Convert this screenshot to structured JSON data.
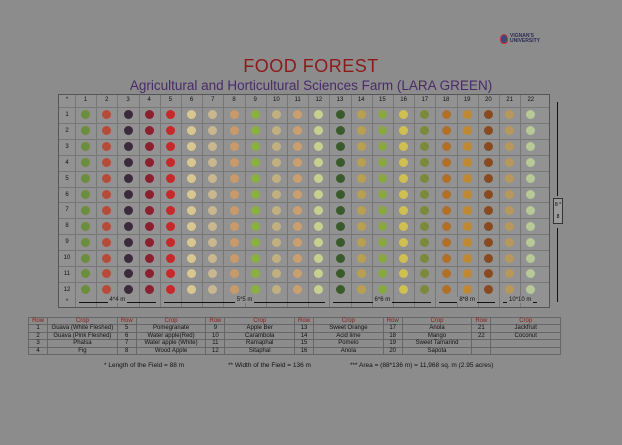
{
  "logo": {
    "text": "VIGNAN'S UNIVERSITY"
  },
  "title": "FOOD FOREST",
  "subtitle": "Agricultural and Horticultural Sciences Farm (LARA GREEN)",
  "grid": {
    "corner": "*",
    "columns": [
      "1",
      "2",
      "3",
      "4",
      "5",
      "6",
      "7",
      "8",
      "9",
      "10",
      "11",
      "12",
      "13",
      "14",
      "15",
      "16",
      "17",
      "18",
      "19",
      "20",
      "21",
      "22"
    ],
    "rows": [
      "1",
      "2",
      "3",
      "4",
      "5",
      "6",
      "7",
      "8",
      "9",
      "10",
      "11",
      "12"
    ],
    "footer_star": "*",
    "spacing_labels": [
      "4*4 m",
      "5*5 m",
      "6*6 m",
      "8*8 m",
      "10*10 m"
    ],
    "side_label": "8 * 8",
    "column_colors": [
      "#6b8e3a",
      "#b84a3a",
      "#3a2a3a",
      "#8a2030",
      "#c8282a",
      "#d8c890",
      "#c8b890",
      "#c89a6a",
      "#8ab040",
      "#c0b080",
      "#c8a070",
      "#c8d090",
      "#3a5a2a",
      "#b8a050",
      "#8aa840",
      "#d0c050",
      "#7a8a3a",
      "#b07028",
      "#c08830",
      "#8a4a20",
      "#b89858",
      "#b8c898"
    ]
  },
  "legend": {
    "headers": [
      "Row",
      "Crop",
      "Row",
      "Crop",
      "Row",
      "Crop",
      "Row",
      "Crop",
      "Row",
      "Crop",
      "Row",
      "Crop"
    ],
    "rows": [
      [
        "1",
        "Guava (White Fleshed)",
        "5",
        "Pomegranate",
        "9",
        "Apple Ber",
        "13",
        "Sweet Orange",
        "17",
        "Anola",
        "21",
        "Jackfruit"
      ],
      [
        "2",
        "Guava (Pink Fleshed)",
        "6",
        "Water apple(Red)",
        "10",
        "Carambola",
        "14",
        "Acid lime",
        "18",
        "Mango",
        "22",
        "Coconut"
      ],
      [
        "3",
        "Phalsa",
        "7",
        "Water apple (White)",
        "11",
        "Ramaphal",
        "15",
        "Pomelo",
        "19",
        "Sweet Tamarind",
        "",
        ""
      ],
      [
        "4",
        "Fig",
        "8",
        "Wood Apple",
        "12",
        "Sitaphal",
        "16",
        "Anola",
        "20",
        "Sapota",
        "",
        ""
      ]
    ]
  },
  "notes": {
    "length": "* Length of the Field = 88 m",
    "width": "** Width of the Field = 136 m",
    "area": "*** Area = (88*136 m) = 11,968 sq. m (2.95 acres)"
  }
}
